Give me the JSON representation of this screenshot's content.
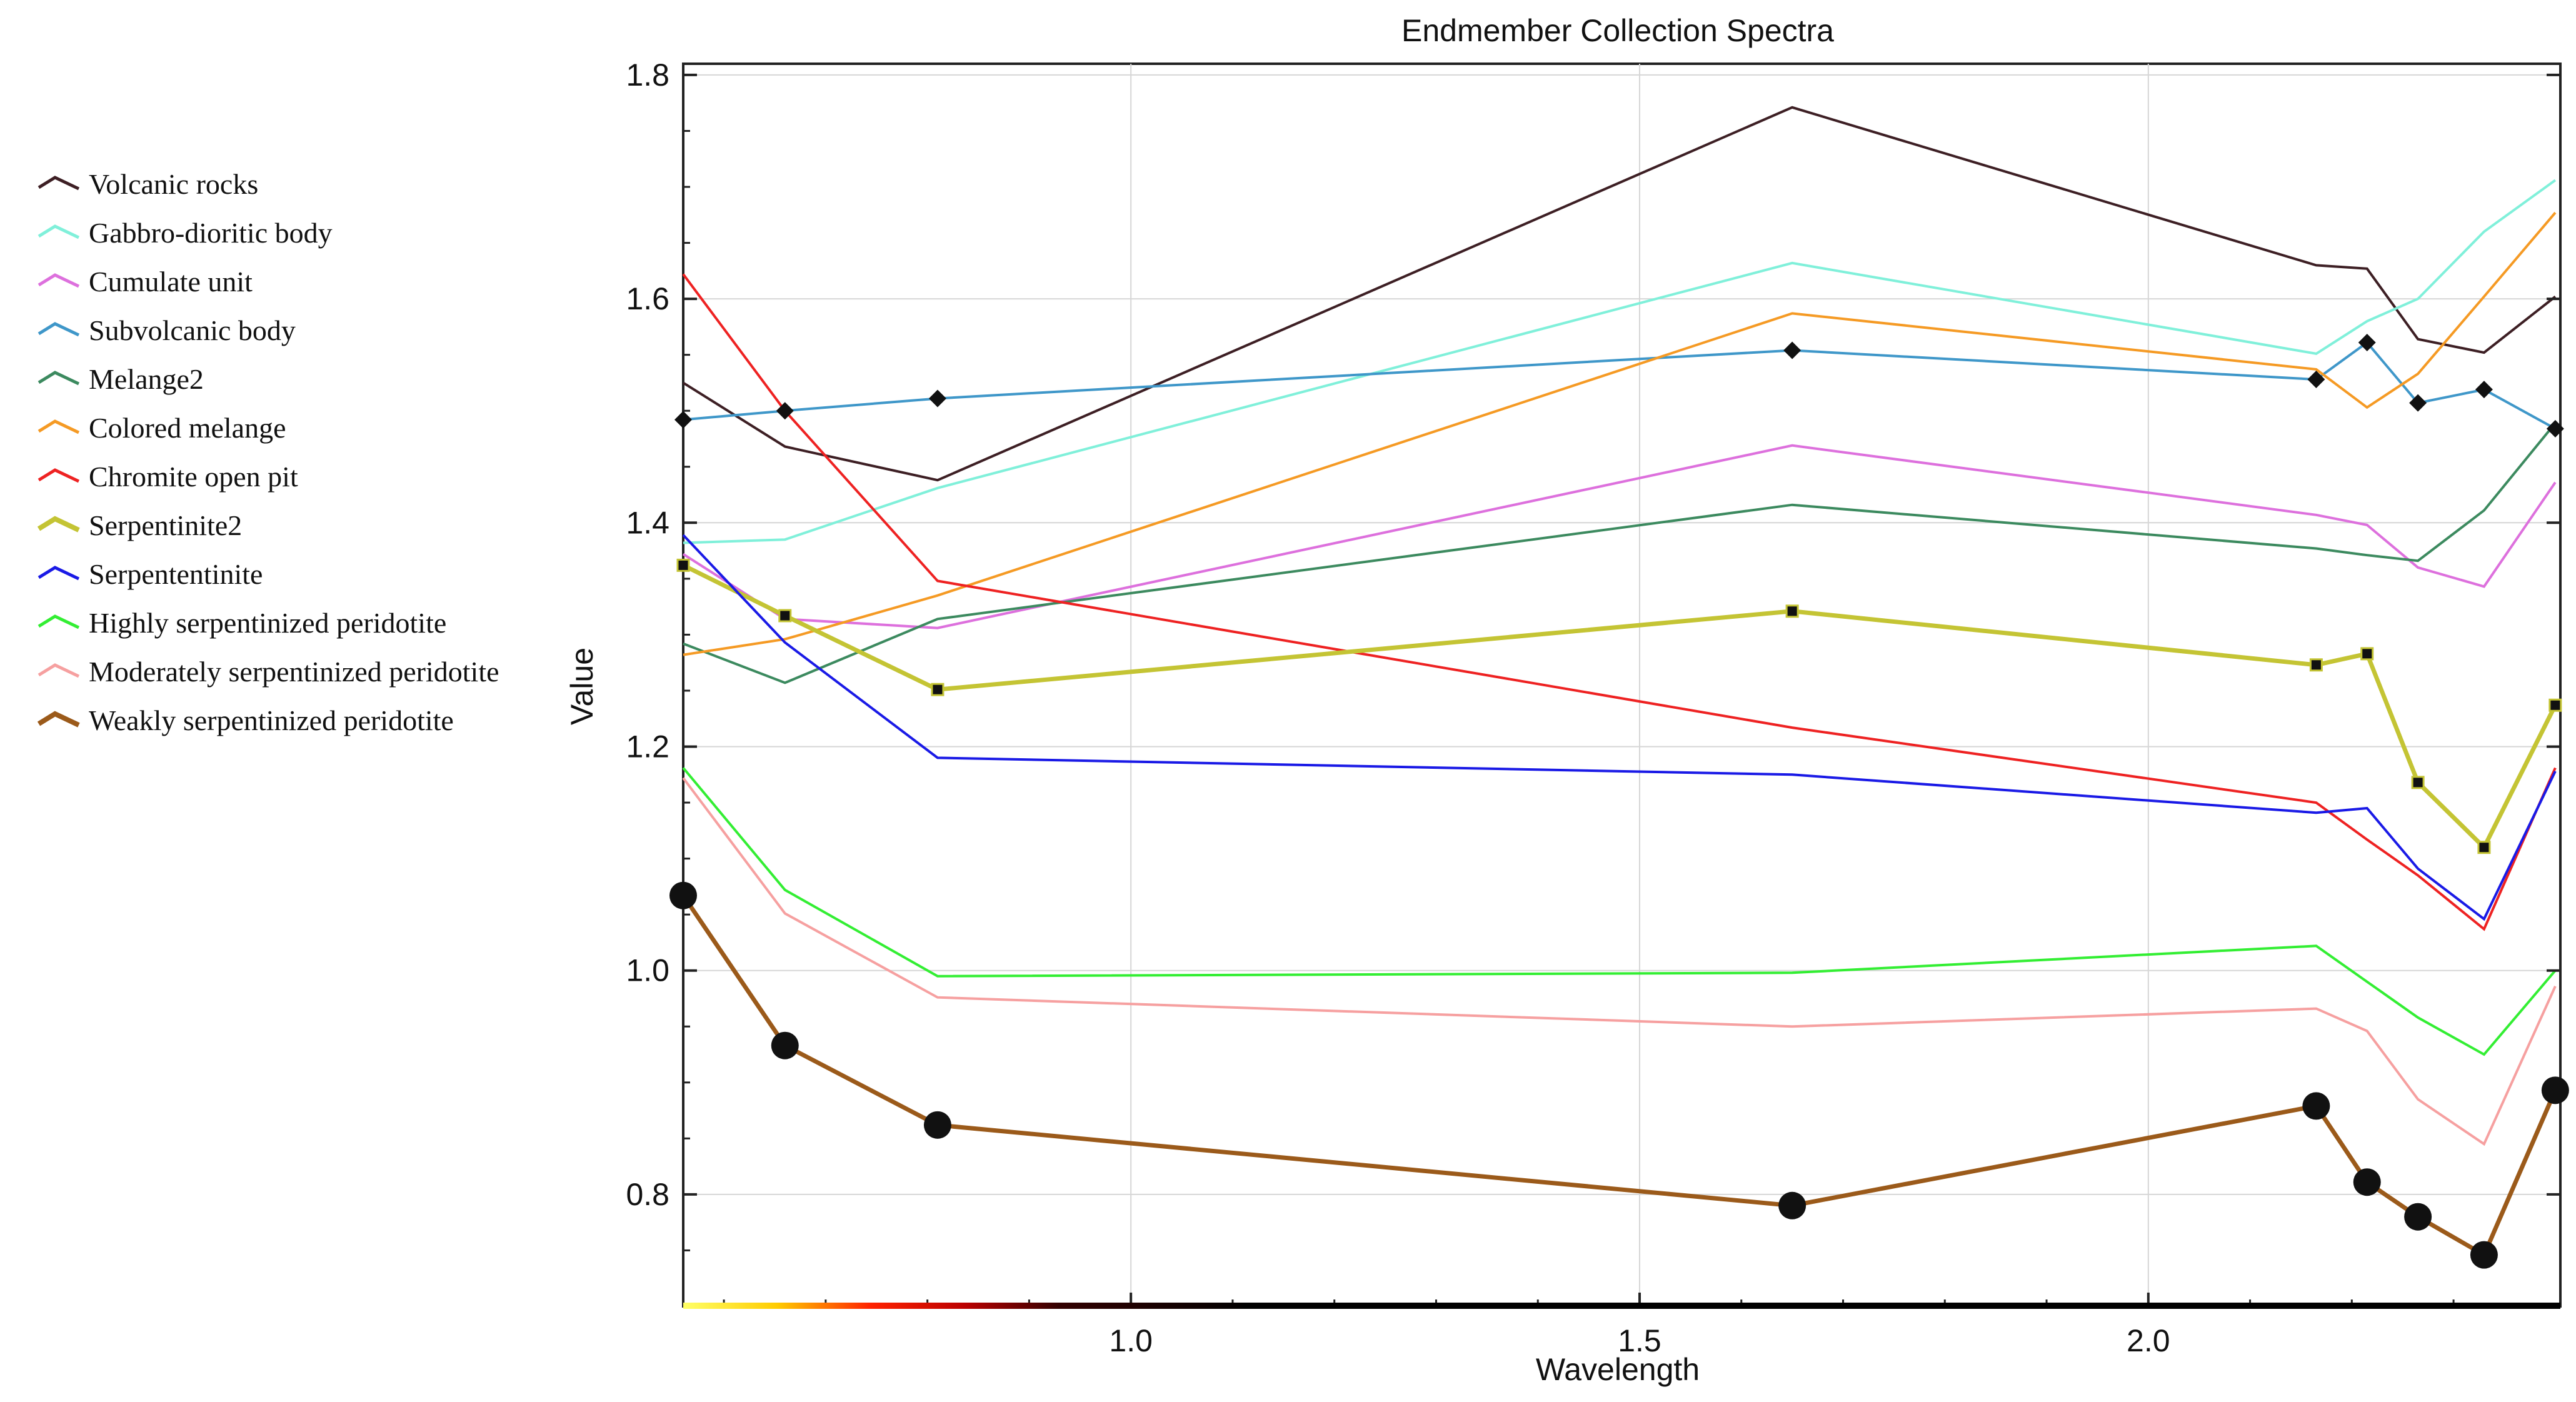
{
  "chart_data": {
    "type": "line",
    "title": "Endmember Collection Spectra",
    "xlabel": "Wavelength",
    "ylabel": "Value",
    "xlim": [
      0.56,
      2.405
    ],
    "ylim": [
      0.7,
      1.81
    ],
    "x_ticks": [
      1.0,
      1.5,
      2.0
    ],
    "y_ticks": [
      0.8,
      1.0,
      1.2,
      1.4,
      1.6,
      1.8
    ],
    "x_tick_labels": [
      "1.0",
      "1.5",
      "2.0"
    ],
    "y_tick_labels": [
      "0.8",
      "1.0",
      "1.2",
      "1.4",
      "1.6",
      "1.8"
    ],
    "grid": true,
    "x": [
      0.56,
      0.66,
      0.81,
      1.65,
      2.165,
      2.215,
      2.265,
      2.33,
      2.4
    ],
    "series": [
      {
        "name": "Volcanic rocks",
        "color": "#3d1f24",
        "marker": "none",
        "values": [
          1.525,
          1.468,
          1.438,
          1.771,
          1.63,
          1.627,
          1.564,
          1.552,
          1.602
        ]
      },
      {
        "name": "Gabbro-dioritic body",
        "color": "#80f0da",
        "marker": "none",
        "values": [
          1.382,
          1.385,
          1.431,
          1.632,
          1.551,
          1.58,
          1.6,
          1.66,
          1.706
        ]
      },
      {
        "name": "Cumulate unit",
        "color": "#dd70dd",
        "marker": "none",
        "values": [
          1.372,
          1.314,
          1.306,
          1.469,
          1.407,
          1.398,
          1.36,
          1.343,
          1.436
        ]
      },
      {
        "name": "Subvolcanic body",
        "color": "#3f97c9",
        "marker": "diamond",
        "values": [
          1.492,
          1.5,
          1.511,
          1.554,
          1.528,
          1.561,
          1.507,
          1.519,
          1.484
        ]
      },
      {
        "name": "Melange2",
        "color": "#3c8a5f",
        "marker": "none",
        "values": [
          1.292,
          1.257,
          1.314,
          1.416,
          1.377,
          1.371,
          1.366,
          1.411,
          1.489
        ]
      },
      {
        "name": "Colored melange",
        "color": "#f59a24",
        "marker": "none",
        "values": [
          1.282,
          1.296,
          1.335,
          1.587,
          1.537,
          1.503,
          1.533,
          1.602,
          1.677
        ]
      },
      {
        "name": "Chromite open pit",
        "color": "#ee2222",
        "marker": "none",
        "values": [
          1.622,
          1.5,
          1.348,
          1.217,
          1.15,
          1.117,
          1.085,
          1.037,
          1.181
        ]
      },
      {
        "name": "Serpentinite2",
        "color": "#c4c434",
        "marker": "square",
        "values": [
          1.362,
          1.317,
          1.251,
          1.321,
          1.273,
          1.283,
          1.168,
          1.11,
          1.237
        ]
      },
      {
        "name": "Serpententinite",
        "color": "#1a1ae6",
        "marker": "none",
        "values": [
          1.389,
          1.293,
          1.19,
          1.175,
          1.141,
          1.145,
          1.091,
          1.046,
          1.178
        ]
      },
      {
        "name": "Highly serpentinized peridotite",
        "color": "#33ee33",
        "marker": "none",
        "values": [
          1.181,
          1.072,
          0.995,
          0.998,
          1.022,
          0.99,
          0.958,
          0.925,
          1.0
        ]
      },
      {
        "name": "Moderately serpentinized peridotite",
        "color": "#f6a0a0",
        "marker": "none",
        "values": [
          1.172,
          1.051,
          0.976,
          0.95,
          0.966,
          0.946,
          0.885,
          0.845,
          0.986
        ]
      },
      {
        "name": "Weakly serpentinized peridotite",
        "color": "#9b5a1a",
        "marker": "circle",
        "values": [
          1.067,
          0.933,
          0.862,
          0.79,
          0.879,
          0.811,
          0.78,
          0.746,
          0.893
        ]
      }
    ]
  }
}
